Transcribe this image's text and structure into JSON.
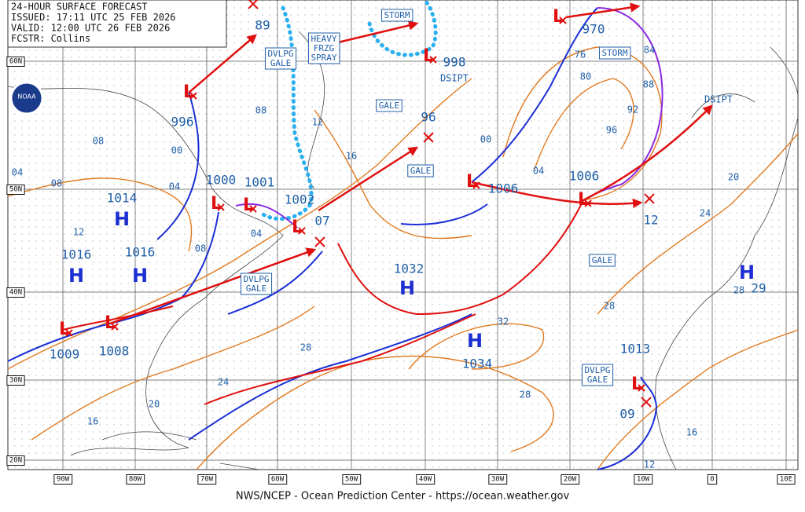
{
  "header": {
    "lines": [
      "24-HOUR SURFACE FORECAST",
      "ISSUED: 17:11 UTC 25 FEB 2026",
      "VALID:  12:00 UTC 26 FEB 2026",
      "FCSTR:  Collins"
    ]
  },
  "logo": "NOAA",
  "footer": "NWS/NCEP - Ocean Prediction Center - https://ocean.weather.gov",
  "latitudes": [
    "60N",
    "50N",
    "40N",
    "30N",
    "20N"
  ],
  "longitudes": [
    "90W",
    "80W",
    "70W",
    "60W",
    "50W",
    "40W",
    "30W",
    "20W",
    "10W",
    "0",
    "10E"
  ],
  "highs": [
    {
      "symbol": "H",
      "pressure": "1014"
    },
    {
      "symbol": "H",
      "pressure": "1016"
    },
    {
      "symbol": "H",
      "pressure": "1016"
    },
    {
      "symbol": "H",
      "pressure": "1032"
    },
    {
      "symbol": "H",
      "pressure": "1034"
    },
    {
      "symbol": "H",
      "pressure": "29"
    }
  ],
  "lows": [
    {
      "symbol": "L",
      "pressure": "996"
    },
    {
      "symbol": "L",
      "pressure": "1000"
    },
    {
      "symbol": "L",
      "pressure": "1001"
    },
    {
      "symbol": "L",
      "pressure": "1002"
    },
    {
      "symbol": "L",
      "pressure": "1009"
    },
    {
      "symbol": "L",
      "pressure": "1008"
    },
    {
      "symbol": "L",
      "pressure": "1006"
    },
    {
      "symbol": "L",
      "pressure": "1006"
    },
    {
      "symbol": "L",
      "pressure": "998"
    },
    {
      "symbol": "L",
      "pressure": "970"
    },
    {
      "symbol": "L",
      "pressure": "1013"
    }
  ],
  "future_positions": [
    "89",
    "07",
    "96",
    "12",
    "09"
  ],
  "warnings": [
    "STORM",
    "DVLPG GALE",
    "HEAVY FRZG SPRAY",
    "GALE",
    "GALE",
    "STORM",
    "GALE",
    "DVLPG GALE",
    "DVLPG GALE"
  ],
  "dissipating": [
    "DSIPT",
    "DSIPT"
  ],
  "isobar_labels": [
    "04",
    "08",
    "08",
    "12",
    "00",
    "04",
    "08",
    "04",
    "08",
    "12",
    "16",
    "00",
    "04",
    "76",
    "80",
    "84",
    "88",
    "92",
    "96",
    "20",
    "24",
    "28",
    "32",
    "28",
    "24",
    "20",
    "16",
    "28",
    "16",
    "12",
    "28"
  ]
}
